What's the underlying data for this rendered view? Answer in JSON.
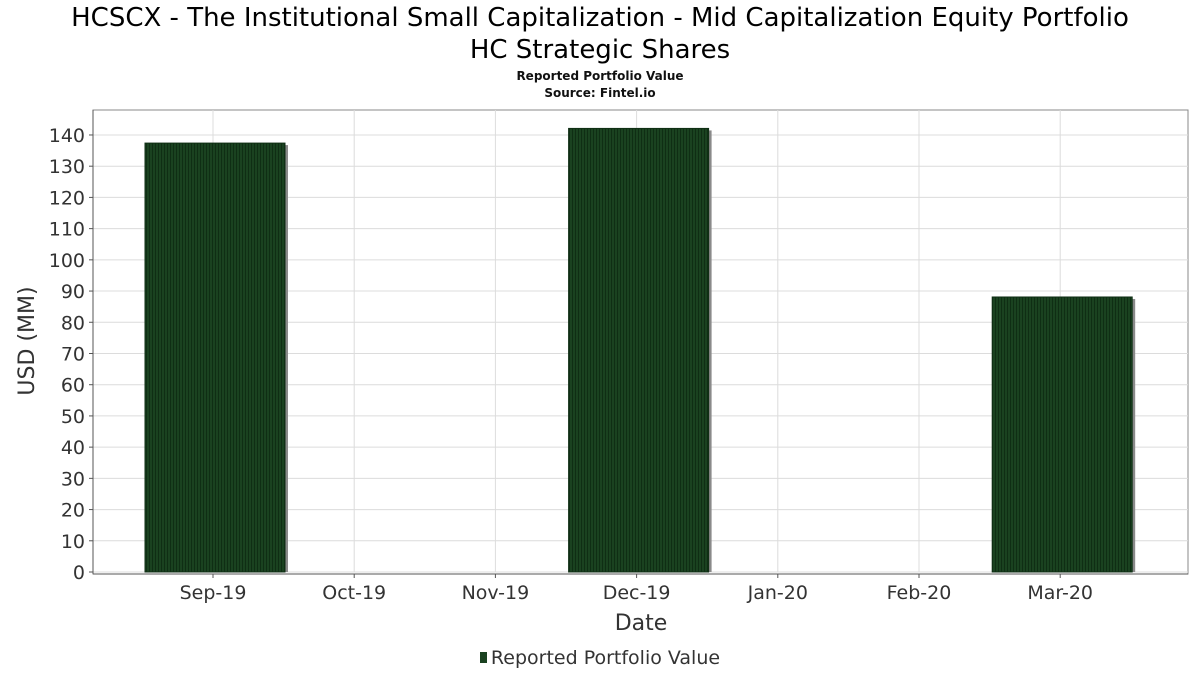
{
  "chart_data": {
    "type": "bar",
    "title": "HCSCX - The Institutional Small Capitalization - Mid Capitalization Equity Portfolio",
    "title_line2": "HC Strategic Shares",
    "subtitle": "Reported Portfolio Value",
    "source": "Source: Fintel.io",
    "xlabel": "Date",
    "ylabel": "USD (MM)",
    "x_ticks": [
      "Sep-19",
      "Oct-19",
      "Nov-19",
      "Dec-19",
      "Jan-20",
      "Feb-20",
      "Mar-20"
    ],
    "y_ticks": [
      0,
      10,
      20,
      30,
      40,
      50,
      60,
      70,
      80,
      90,
      100,
      110,
      120,
      130,
      140
    ],
    "ylim": [
      0,
      148
    ],
    "grid": true,
    "legend_position": "bottom",
    "series": [
      {
        "name": "Reported Portfolio Value",
        "color": "#1a4220",
        "bars": [
          {
            "period_start": "Sep-19",
            "value": 137.4
          },
          {
            "period_start": "Dec-19",
            "value": 142.1
          },
          {
            "period_start": "Mar-20",
            "value": 88.1
          }
        ]
      }
    ]
  }
}
